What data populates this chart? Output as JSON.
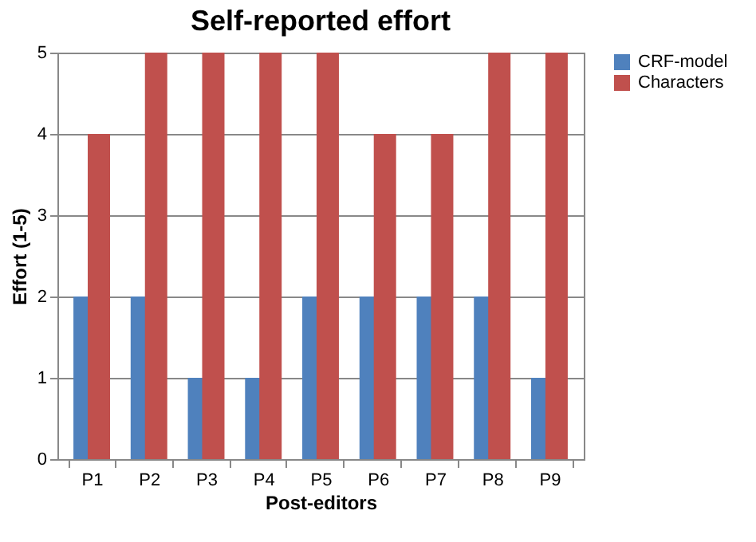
{
  "chart_data": {
    "type": "bar",
    "title": "Self-reported effort",
    "xlabel": "Post-editors",
    "ylabel": "Effort (1-5)",
    "categories": [
      "P1",
      "P2",
      "P3",
      "P4",
      "P5",
      "P6",
      "P7",
      "P8",
      "P9"
    ],
    "series": [
      {
        "name": "CRF-model",
        "color": "#4f81bd",
        "values": [
          2,
          2,
          1,
          1,
          2,
          2,
          2,
          2,
          1
        ]
      },
      {
        "name": "Characters",
        "color": "#c0504d",
        "values": [
          4,
          5,
          5,
          5,
          5,
          4,
          4,
          5,
          5
        ]
      }
    ],
    "ylim": [
      0,
      5
    ],
    "yticks": [
      0,
      1,
      2,
      3,
      4,
      5
    ],
    "grid": "y",
    "legend": "right"
  }
}
